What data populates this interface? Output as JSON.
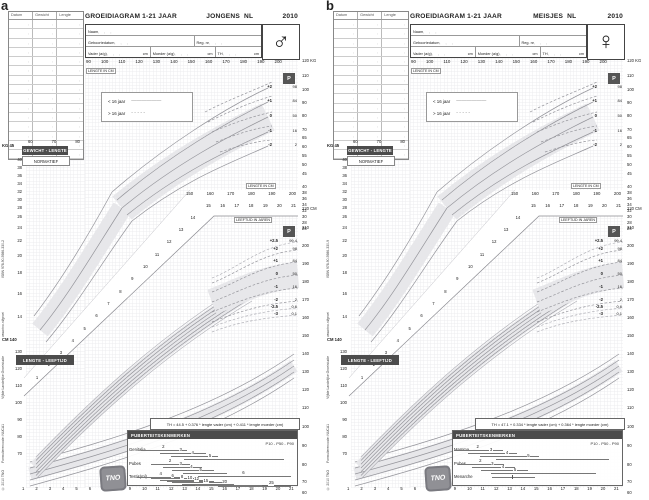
{
  "figure": {
    "panels": [
      {
        "letter": "a",
        "log_table": {
          "headers": [
            "Datum",
            "Gewicht",
            "Lengte"
          ],
          "row_count": 15,
          "cell_mark": ","
        },
        "header": {
          "title": "GROEIDIAGRAM 1-21 JAAR",
          "subject": "JONGENS",
          "country": "NL",
          "year": "2010",
          "sex_symbol": "♂"
        },
        "form": {
          "naam": "Naam",
          "geboortedat": "Geboortedatum",
          "reg_nr": "Reg. nr",
          "vader": "Vader (a/g)",
          "moeder": "Moeder (a/g)",
          "th": "TH",
          "cm": "cm",
          "dots": " ,      ,      , "
        },
        "legend": [
          {
            "label": "< 16 jaar",
            "line": "――――――"
          },
          {
            "label": "> 16 jaar",
            "line": "- - - - -"
          }
        ],
        "section_labels": {
          "gewicht_lengte": "GEWICHT - LENGTE",
          "normatief": "NORMATIEF",
          "lengte_leeftijd": "LENGTE - LEEFTIJD",
          "puberteit": "PUBERTEITSKENMERKEN",
          "percentile_note": "P10 - P50 - P90",
          "p": "P",
          "lengte_in_cm": "LENGTE IN CM",
          "leeftijd_in_jaren": "LEEFTIJD IN JAREN",
          "kg_45": "KG 45",
          "cm_140": "CM 140"
        },
        "axes": {
          "top_length": [
            90,
            100,
            110,
            120,
            130,
            140,
            150,
            160,
            170,
            180,
            190,
            200
          ],
          "small_top": [
            60,
            70,
            80
          ],
          "left_kg": [
            40,
            38,
            36,
            34,
            32,
            30,
            28,
            26,
            24,
            22,
            20,
            18,
            16,
            14
          ],
          "left_cm": [
            130,
            120,
            110,
            100,
            90,
            80,
            70
          ],
          "right_kg": [
            "120 KG",
            110,
            100,
            90,
            80,
            70,
            65,
            60,
            55,
            50,
            45,
            40,
            38,
            36,
            34,
            32,
            30,
            28,
            26
          ],
          "right_cm": [
            "220 CM",
            210,
            200,
            190,
            180,
            170,
            160,
            150,
            140,
            130,
            120,
            110,
            100,
            90,
            80,
            70,
            60
          ],
          "mid_length": [
            150,
            160,
            170,
            180,
            190,
            200
          ],
          "mid_age": [
            15,
            16,
            17,
            18,
            19,
            20,
            21
          ],
          "diag_age": [
            1,
            2,
            3,
            4,
            5,
            6,
            7,
            8,
            9,
            10,
            11,
            12,
            13,
            14
          ],
          "bottom_age": [
            1,
            2,
            3,
            4,
            5,
            6,
            7,
            8,
            9,
            10,
            11,
            12,
            13,
            14,
            15,
            16,
            17,
            18,
            19,
            20,
            21
          ]
        },
        "sd_weight": {
          "labels": [
            "+2",
            "+1",
            "0",
            "-1",
            "-2"
          ],
          "percentiles": [
            "98",
            "84",
            "50",
            "16",
            "2"
          ]
        },
        "sd_height": {
          "labels": [
            "+2.5",
            "+2",
            "+1",
            "0",
            "-1",
            "-2",
            "-2.5",
            "-3"
          ],
          "percentiles": [
            "99.4",
            "98",
            "84",
            "50",
            "16",
            "2",
            "0.6",
            "0.1"
          ]
        },
        "th_formula": "TH = 44.5 + 0.376 * lengte vader (cm) + 0.411 * lengte moeder (cm)",
        "puberty_rows": [
          {
            "label": "Genitalia",
            "markers": [
              {
                "stage": "2",
                "p10": 9.8,
                "p50": 11.5,
                "p90": 13.2
              },
              {
                "stage": "3",
                "p10": 11.2,
                "p50": 12.8,
                "p90": 14.6
              },
              {
                "stage": "4",
                "p10": 12.0,
                "p50": 13.7,
                "p90": 15.5
              },
              {
                "stage": "5",
                "p10": 13.0,
                "p50": 15.0,
                "p90": 20.5
              }
            ]
          },
          {
            "label": "Pubes",
            "markers": [
              {
                "stage": "2",
                "p10": 10.5,
                "p50": 12.0,
                "p90": 13.4
              },
              {
                "stage": "3",
                "p10": 11.4,
                "p50": 12.8,
                "p90": 14.3
              },
              {
                "stage": "4",
                "p10": 12.1,
                "p50": 13.6,
                "p90": 15.2
              },
              {
                "stage": "5",
                "p10": 12.9,
                "p50": 14.3,
                "p90": 16.2
              },
              {
                "stage": "6",
                "p10": 14.0,
                "p50": 17.5,
                "p90": 21.0
              }
            ]
          },
          {
            "label": "Testis(ml)",
            "markers": [
              {
                "stage": "4",
                "p10": 9.5,
                "p50": 11.3,
                "p90": 13.0
              },
              {
                "stage": "6",
                "p10": 10.5,
                "p50": 12.2,
                "p90": 14.0
              },
              {
                "stage": "8",
                "p10": 11.2,
                "p50": 12.9,
                "p90": 14.7
              },
              {
                "stage": "10",
                "p10": 11.7,
                "p50": 13.4,
                "p90": 15.2
              },
              {
                "stage": "12",
                "p10": 12.1,
                "p50": 13.9,
                "p90": 15.8
              },
              {
                "stage": "15",
                "p10": 12.8,
                "p50": 14.6,
                "p90": 16.7
              },
              {
                "stage": "20",
                "p10": 13.8,
                "p50": 16.0,
                "p90": 18.8
              },
              {
                "stage": "25",
                "p10": 15.5,
                "p50": 19.5,
                "p90": 21.0
              }
            ]
          }
        ],
        "footer_vertical": [
          "ISBN 978-90-5986-330-2",
          "www.tno.nl/groei",
          "Vijfde Landelijke Groeistudie",
          "Formulierencode: NUCA1",
          "© 2010 TNO"
        ],
        "logo": "TNO"
      },
      {
        "letter": "b",
        "log_table": {
          "headers": [
            "Datum",
            "Gewicht",
            "Lengte"
          ],
          "row_count": 15,
          "cell_mark": ","
        },
        "header": {
          "title": "GROEIDIAGRAM 1-21 JAAR",
          "subject": "MEISJES",
          "country": "NL",
          "year": "2010",
          "sex_symbol": "♀"
        },
        "form": {
          "naam": "Naam",
          "geboortedat": "Geboortedatum",
          "reg_nr": "Reg. nr",
          "vader": "Vader (a/g)",
          "moeder": "Moeder (a/g)",
          "th": "TH",
          "cm": "cm",
          "dots": " ,      ,      , "
        },
        "legend": [
          {
            "label": "< 16 jaar",
            "line": "――――――"
          },
          {
            "label": "> 16 jaar",
            "line": "- - - - -"
          }
        ],
        "section_labels": {
          "gewicht_lengte": "GEWICHT - LENGTE",
          "normatief": "NORMATIEF",
          "lengte_leeftijd": "LENGTE - LEEFTIJD",
          "puberteit": "PUBERTEITSKENMERKEN",
          "percentile_note": "P10 - P50 - P90",
          "p": "P",
          "lengte_in_cm": "LENGTE IN CM",
          "leeftijd_in_jaren": "LEEFTIJD IN JAREN",
          "kg_45": "KG 45",
          "cm_140": "CM 140"
        },
        "axes": {
          "top_length": [
            90,
            100,
            110,
            120,
            130,
            140,
            150,
            160,
            170,
            180,
            190,
            200
          ],
          "small_top": [
            60,
            70,
            80
          ],
          "left_kg": [
            40,
            38,
            36,
            34,
            32,
            30,
            28,
            26,
            24,
            22,
            20,
            18,
            16,
            14
          ],
          "left_cm": [
            130,
            120,
            110,
            100,
            90,
            80,
            70
          ],
          "right_kg": [
            "120 KG",
            110,
            100,
            90,
            80,
            70,
            65,
            60,
            55,
            50,
            45,
            40,
            38,
            36,
            34,
            32,
            30,
            28,
            26
          ],
          "right_cm": [
            "220 CM",
            210,
            200,
            190,
            180,
            170,
            160,
            150,
            140,
            130,
            120,
            110,
            100,
            90,
            80,
            70,
            60
          ],
          "mid_length": [
            150,
            160,
            170,
            180,
            190,
            200
          ],
          "mid_age": [
            15,
            16,
            17,
            18,
            19,
            20,
            21
          ],
          "diag_age": [
            1,
            2,
            3,
            4,
            5,
            6,
            7,
            8,
            9,
            10,
            11,
            12,
            13,
            14
          ],
          "bottom_age": [
            1,
            2,
            3,
            4,
            5,
            6,
            7,
            8,
            9,
            10,
            11,
            12,
            13,
            14,
            15,
            16,
            17,
            18,
            19,
            20,
            21
          ]
        },
        "sd_weight": {
          "labels": [
            "+2",
            "+1",
            "0",
            "-1",
            "-2"
          ],
          "percentiles": [
            "98",
            "84",
            "50",
            "16",
            "2"
          ]
        },
        "sd_height": {
          "labels": [
            "+2.5",
            "+2",
            "+1",
            "0",
            "-1",
            "-2",
            "-2.5",
            "-3"
          ],
          "percentiles": [
            "99.4",
            "98",
            "84",
            "50",
            "16",
            "2",
            "0.6",
            "0.1"
          ]
        },
        "th_formula": "TH = 47.1 + 0.334 * lengte vader (cm) + 0.364 * lengte moeder (cm)",
        "puberty_rows": [
          {
            "label": "Mamma",
            "markers": [
              {
                "stage": "2",
                "p10": 8.9,
                "p50": 10.7,
                "p90": 12.5
              },
              {
                "stage": "3",
                "p10": 9.9,
                "p50": 11.7,
                "p90": 13.6
              },
              {
                "stage": "4",
                "p10": 10.8,
                "p50": 12.9,
                "p90": 15.2
              },
              {
                "stage": "5",
                "p10": 12.0,
                "p50": 14.5,
                "p90": 20.5
              }
            ]
          },
          {
            "label": "Pubes",
            "markers": [
              {
                "stage": "2",
                "p10": 9.2,
                "p50": 10.9,
                "p90": 12.6
              },
              {
                "stage": "3",
                "p10": 10.2,
                "p50": 11.8,
                "p90": 13.4
              },
              {
                "stage": "4",
                "p10": 10.9,
                "p50": 12.6,
                "p90": 14.4
              },
              {
                "stage": "5",
                "p10": 11.6,
                "p50": 13.5,
                "p90": 19.5
              }
            ]
          },
          {
            "label": "Menarche",
            "markers": [
              {
                "stage": "",
                "p10": 11.7,
                "p50": 13.2,
                "p90": 14.9
              }
            ]
          }
        ],
        "footer_vertical": [
          "ISBN 978-90-5986-330-9",
          "www.tno.nl/groei",
          "Vijfde Landelijke Groeistudie",
          "Formulierencode: NUCA1",
          "© 2010 TNO"
        ],
        "logo": "TNO"
      }
    ]
  },
  "chart_data": [
    {
      "type": "line",
      "title": "Groeidiagram 1-21 jaar, jongens, NL 2010",
      "legend": [
        "< 16 jaar",
        "> 16 jaar"
      ],
      "legend_position": "upper-left",
      "grid": true,
      "subcharts": [
        {
          "name": "gewicht naar lengte (normatief)",
          "xlabel": "LENGTE IN CM",
          "ylabel": "KG",
          "xlim": [
            60,
            200
          ],
          "ylim": [
            8,
            120
          ],
          "series_labels": [
            "+2",
            "+1",
            "0",
            "-1",
            "-2"
          ],
          "percentile_labels": [
            "98",
            "84",
            "50",
            "16",
            "2"
          ],
          "p50": {
            "x": [
              90,
              110,
              130,
              150,
              170,
              190
            ],
            "y": [
              12.5,
              18,
              26,
              39,
              57,
              75
            ]
          }
        },
        {
          "name": "lengte naar leeftijd",
          "xlabel": "LEEFTIJD IN JAREN",
          "ylabel": "CM",
          "xlim": [
            1,
            21
          ],
          "ylim": [
            60,
            220
          ],
          "series_labels": [
            "+2.5",
            "+2",
            "+1",
            "0",
            "-1",
            "-2",
            "-2.5",
            "-3"
          ],
          "percentile_labels": [
            "99.4",
            "98",
            "84",
            "50",
            "16",
            "2",
            "0.6",
            "0.1"
          ],
          "p50": {
            "x": [
              1,
              3,
              5,
              7,
              9,
              11,
              13,
              15,
              17,
              19,
              21
            ],
            "y": [
              76,
              97,
              110,
              122,
              134,
              146,
              160,
              174,
              181,
              183,
              184
            ]
          }
        }
      ],
      "annotations": [
        "TH = 44.5 + 0.376 * lengte vader (cm) + 0.411 * lengte moeder (cm)",
        "P10 - P50 - P90"
      ]
    },
    {
      "type": "line",
      "title": "Groeidiagram 1-21 jaar, meisjes, NL 2010",
      "legend": [
        "< 16 jaar",
        "> 16 jaar"
      ],
      "legend_position": "upper-left",
      "grid": true,
      "subcharts": [
        {
          "name": "gewicht naar lengte (normatief)",
          "xlabel": "LENGTE IN CM",
          "ylabel": "KG",
          "xlim": [
            60,
            200
          ],
          "ylim": [
            8,
            120
          ],
          "series_labels": [
            "+2",
            "+1",
            "0",
            "-1",
            "-2"
          ],
          "percentile_labels": [
            "98",
            "84",
            "50",
            "16",
            "2"
          ],
          "p50": {
            "x": [
              90,
              110,
              130,
              150,
              170,
              190
            ],
            "y": [
              12,
              17.5,
              26,
              40,
              58,
              62
            ]
          }
        },
        {
          "name": "lengte naar leeftijd",
          "xlabel": "LEEFTIJD IN JAREN",
          "ylabel": "CM",
          "xlim": [
            1,
            21
          ],
          "ylim": [
            60,
            220
          ],
          "series_labels": [
            "+2.5",
            "+2",
            "+1",
            "0",
            "-1",
            "-2",
            "-2.5",
            "-3"
          ],
          "percentile_labels": [
            "99.4",
            "98",
            "84",
            "50",
            "16",
            "2",
            "0.6",
            "0.1"
          ],
          "p50": {
            "x": [
              1,
              3,
              5,
              7,
              9,
              11,
              13,
              15,
              17,
              19,
              21
            ],
            "y": [
              75,
              96,
              109,
              121,
              134,
              147,
              160,
              167,
              169,
              170,
              170
            ]
          }
        }
      ],
      "annotations": [
        "TH = 47.1 + 0.334 * lengte vader (cm) + 0.364 * lengte moeder (cm)",
        "P10 - P50 - P90"
      ]
    }
  ]
}
